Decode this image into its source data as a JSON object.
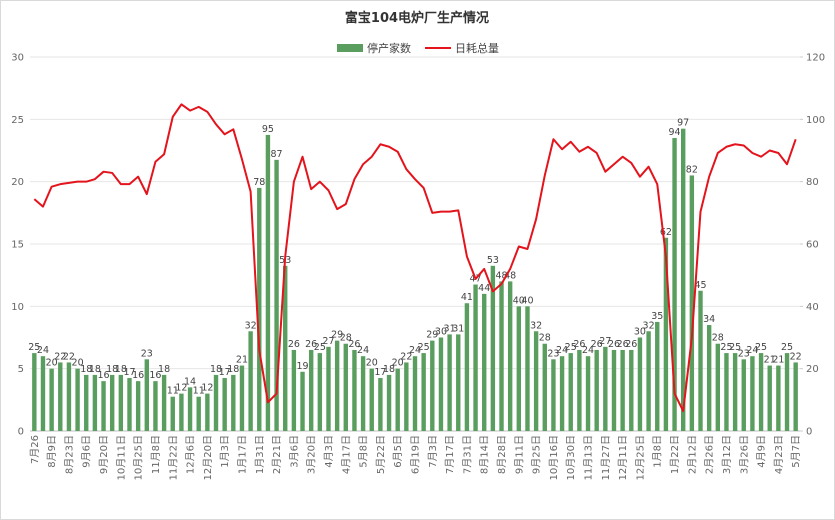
{
  "chart_data": {
    "type": "bar_line",
    "title": "富宝104电炉厂生产情况",
    "categories": [
      "7月26",
      null,
      "8月9日",
      null,
      "8月23日",
      null,
      "9月6日",
      null,
      "9月20日",
      null,
      "10月11日",
      null,
      "10月25日",
      null,
      "11月8日",
      null,
      "11月22日",
      null,
      "12月6日",
      null,
      "12月20日",
      null,
      "1月3日",
      null,
      "1月17日",
      null,
      "1月31日",
      null,
      "2月21日",
      null,
      "3月6日",
      null,
      "3月20日",
      null,
      "4月3日",
      null,
      "4月17日",
      null,
      "5月8日",
      null,
      "5月22日",
      null,
      "6月5日",
      null,
      "6月19日",
      null,
      "7月3日",
      null,
      "7月17日",
      null,
      "7月31日",
      null,
      "8月14日",
      null,
      "8月28日",
      null,
      "9月11日",
      null,
      "9月25日",
      null,
      "10月16日",
      null,
      "10月30日",
      null,
      "11月13日",
      null,
      "11月27日",
      null,
      "12月11日",
      null,
      "12月25日",
      null,
      "1月8日",
      null,
      "1月22日",
      null,
      "2月12日",
      null,
      "2月26日",
      null,
      "3月12日",
      null,
      "3月26日",
      null,
      "4月9日",
      null,
      "4月23日",
      null,
      "5月7日"
    ],
    "series": [
      {
        "name": "停产家数",
        "type": "bar",
        "axis": "y2",
        "color": "#5a9e5f",
        "values": [
          25,
          24,
          20,
          22,
          22,
          20,
          18,
          18,
          16,
          18,
          18,
          17,
          16,
          23,
          16,
          18,
          11,
          12,
          14,
          11,
          12,
          18,
          17,
          18,
          21,
          32,
          78,
          95,
          87,
          53,
          26,
          19,
          26,
          25,
          27,
          29,
          28,
          26,
          24,
          20,
          17,
          18,
          20,
          22,
          24,
          25,
          29,
          30,
          31,
          31,
          41,
          47,
          44,
          53,
          48,
          48,
          40,
          40,
          32,
          28,
          23,
          24,
          25,
          26,
          24,
          26,
          27,
          26,
          26,
          26,
          30,
          32,
          35,
          62,
          94,
          97,
          82,
          45,
          34,
          28,
          25,
          25,
          23,
          24,
          25,
          21,
          21,
          25,
          22
        ]
      },
      {
        "name": "日耗总量",
        "type": "line",
        "color": "#e3141c",
        "values": [
          18.6,
          18.0,
          19.6,
          19.8,
          19.9,
          20.0,
          20.0,
          20.2,
          20.8,
          20.7,
          19.8,
          19.8,
          20.4,
          19.0,
          21.6,
          22.2,
          25.2,
          26.2,
          25.7,
          26.0,
          25.6,
          24.6,
          23.8,
          24.2,
          21.8,
          19.2,
          6.5,
          2.3,
          3.0,
          14.0,
          20.0,
          22.0,
          19.4,
          20.0,
          19.3,
          17.8,
          18.2,
          20.2,
          21.4,
          22.0,
          23.0,
          22.8,
          22.4,
          21.0,
          20.2,
          19.5,
          17.5,
          17.6,
          17.6,
          17.7,
          14.0,
          12.2,
          13.0,
          11.2,
          11.8,
          13.0,
          14.8,
          14.6,
          17.0,
          20.5,
          23.4,
          22.6,
          23.2,
          22.4,
          22.8,
          22.3,
          20.8,
          21.4,
          22.0,
          21.5,
          20.4,
          21.2,
          19.8,
          14.0,
          3.0,
          1.6,
          7.5,
          17.6,
          20.4,
          22.3,
          22.8,
          23.0,
          22.9,
          22.3,
          22.0,
          22.5,
          22.3,
          21.4,
          23.4
        ]
      }
    ],
    "ylim": [
      0,
      30
    ],
    "yticks": [
      0,
      5,
      10,
      15,
      20,
      25,
      30
    ],
    "y2lim": [
      0,
      120
    ],
    "y2ticks": [
      0,
      20,
      40,
      60,
      80,
      100,
      120
    ],
    "legend": "top"
  }
}
